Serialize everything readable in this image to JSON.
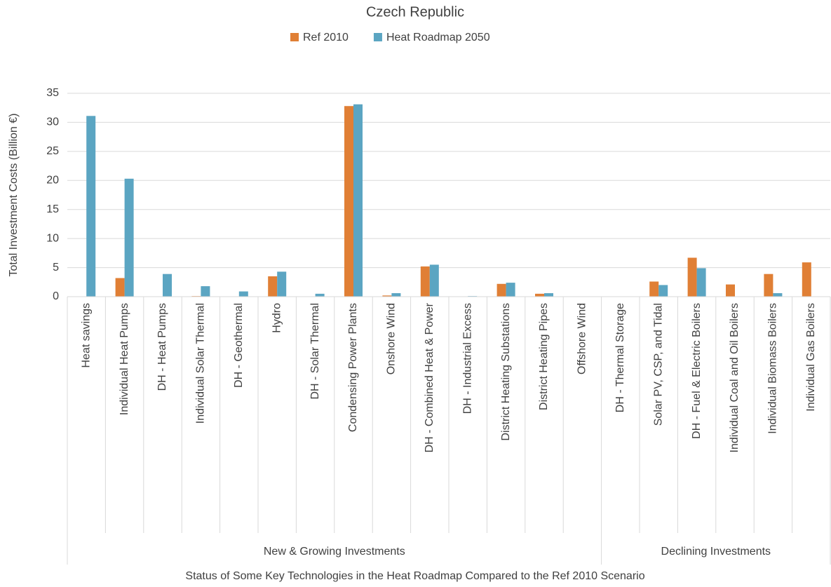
{
  "chart_data": {
    "type": "bar",
    "title": "Czech Republic",
    "y_label": "Total Investment Costs (Billion €)",
    "x_label": "Status of Some Key Technologies in the Heat Roadmap Compared to the Ref 2010 Scenario",
    "category_groups": [
      {
        "name": "New & Growing Investments",
        "categories": [
          "Heat savings",
          "Individual Heat Pumps",
          "DH - Heat Pumps",
          "Individual Solar Thermal",
          "DH - Geothermal",
          "Hydro",
          "DH - Solar Thermal",
          "Condensing Power Plants",
          "Onshore Wind",
          "DH - Combined Heat & Power",
          "DH - Industrial Excess",
          "District Heating Substations",
          "District Heating Pipes",
          "Offshore Wind"
        ]
      },
      {
        "name": "Declining Investments",
        "categories": [
          "DH - Thermal Storage",
          "Solar PV, CSP, and Tidal",
          "DH - Fuel & Electric Boilers",
          "Individual Coal and Oil Boilers",
          "Individual Biomass Boilers",
          "Individual Gas Boilers"
        ]
      }
    ],
    "series": [
      {
        "name": "Ref 2010",
        "color": "#e07f35",
        "values": [
          0,
          3.2,
          0,
          0.1,
          0,
          3.5,
          0,
          32.8,
          0.2,
          5.2,
          0,
          2.2,
          0.5,
          0,
          0,
          2.6,
          6.7,
          2.1,
          3.9,
          5.9
        ]
      },
      {
        "name": "Heat Roadmap 2050",
        "color": "#5ba5c2",
        "values": [
          31.1,
          20.3,
          3.9,
          1.8,
          0.9,
          4.3,
          0.5,
          33.1,
          0.6,
          5.5,
          0.1,
          2.4,
          0.6,
          0,
          0,
          2.0,
          4.9,
          0,
          0.6,
          0
        ]
      }
    ],
    "ylim": [
      0,
      35
    ],
    "yticks": [
      0,
      5,
      10,
      15,
      20,
      25,
      30,
      35
    ],
    "grid": true,
    "legend": "top"
  }
}
